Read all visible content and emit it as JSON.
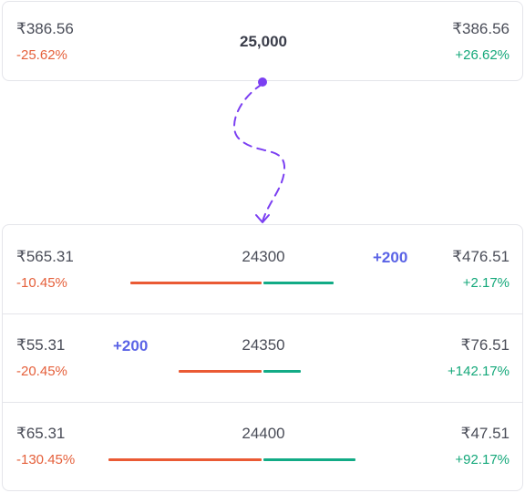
{
  "summary": {
    "left_price": "₹386.56",
    "left_change": "-25.62%",
    "center_strike": "25,000",
    "right_price": "₹386.56",
    "right_change": "+26.62%"
  },
  "rows": [
    {
      "left_price": "₹565.31",
      "left_change": "-10.45%",
      "strike": "24300",
      "badge": "+200",
      "badge_side": "right",
      "right_price": "₹476.51",
      "right_change": "+2.17%",
      "left_bar": 0.6,
      "right_bar": 0.32
    },
    {
      "left_price": "₹55.31",
      "left_change": "-20.45%",
      "strike": "24350",
      "badge": "+200",
      "badge_side": "left",
      "right_price": "₹76.51",
      "right_change": "+142.17%",
      "left_bar": 0.38,
      "right_bar": 0.17
    },
    {
      "left_price": "₹65.31",
      "left_change": "-130.45%",
      "strike": "24400",
      "badge": "",
      "badge_side": "",
      "right_price": "₹47.51",
      "right_change": "+92.17%",
      "left_bar": 0.7,
      "right_bar": 0.42
    }
  ],
  "colors": {
    "negative": "#e5603b",
    "positive": "#14a87a",
    "badge": "#5a63e6",
    "connector": "#7b3ff2"
  },
  "icons": {
    "connector": "dashed-arrow-icon"
  }
}
